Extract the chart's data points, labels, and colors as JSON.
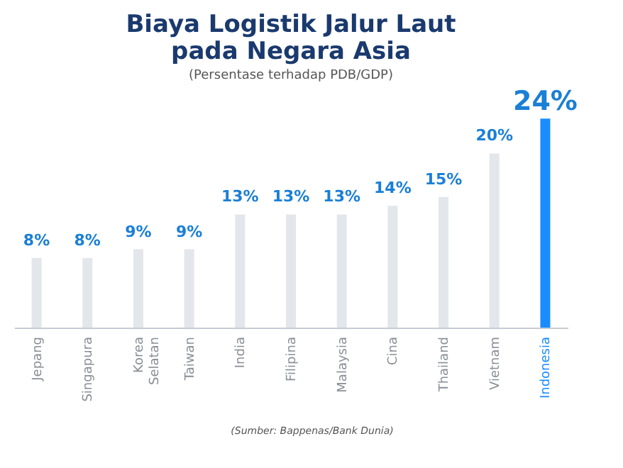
{
  "chart_data": {
    "type": "bar",
    "title": "Biaya Logistik Jalur Laut\npada Negara Asia",
    "subtitle": "(Persentase terhadap PDB/GDP)",
    "categories": [
      "Jepang",
      "Singapura",
      "Korea Selatan",
      "Taiwan",
      "India",
      "Filipina",
      "Malaysia",
      "Cina",
      "Thailand",
      "Vietnam",
      "Indonesia"
    ],
    "values": [
      8,
      8,
      9,
      9,
      13,
      13,
      13,
      14,
      15,
      20,
      24
    ],
    "colors": [
      "#e3e6ea",
      "#e3e6ea",
      "#e3e6ea",
      "#e3e6ea",
      "#e3e6ea",
      "#e3e6ea",
      "#e3e6ea",
      "#e3e6ea",
      "#e3e6ea",
      "#e3e6ea",
      "#1a8cff"
    ],
    "value_labels": [
      "8%",
      "8%",
      "9%",
      "9%",
      "13%",
      "13%",
      "13%",
      "14%",
      "15%",
      "20%",
      "24%"
    ],
    "annotations": [
      "(Sumber: Bappenas/Bank Dunia)"
    ],
    "grid": false
  }
}
